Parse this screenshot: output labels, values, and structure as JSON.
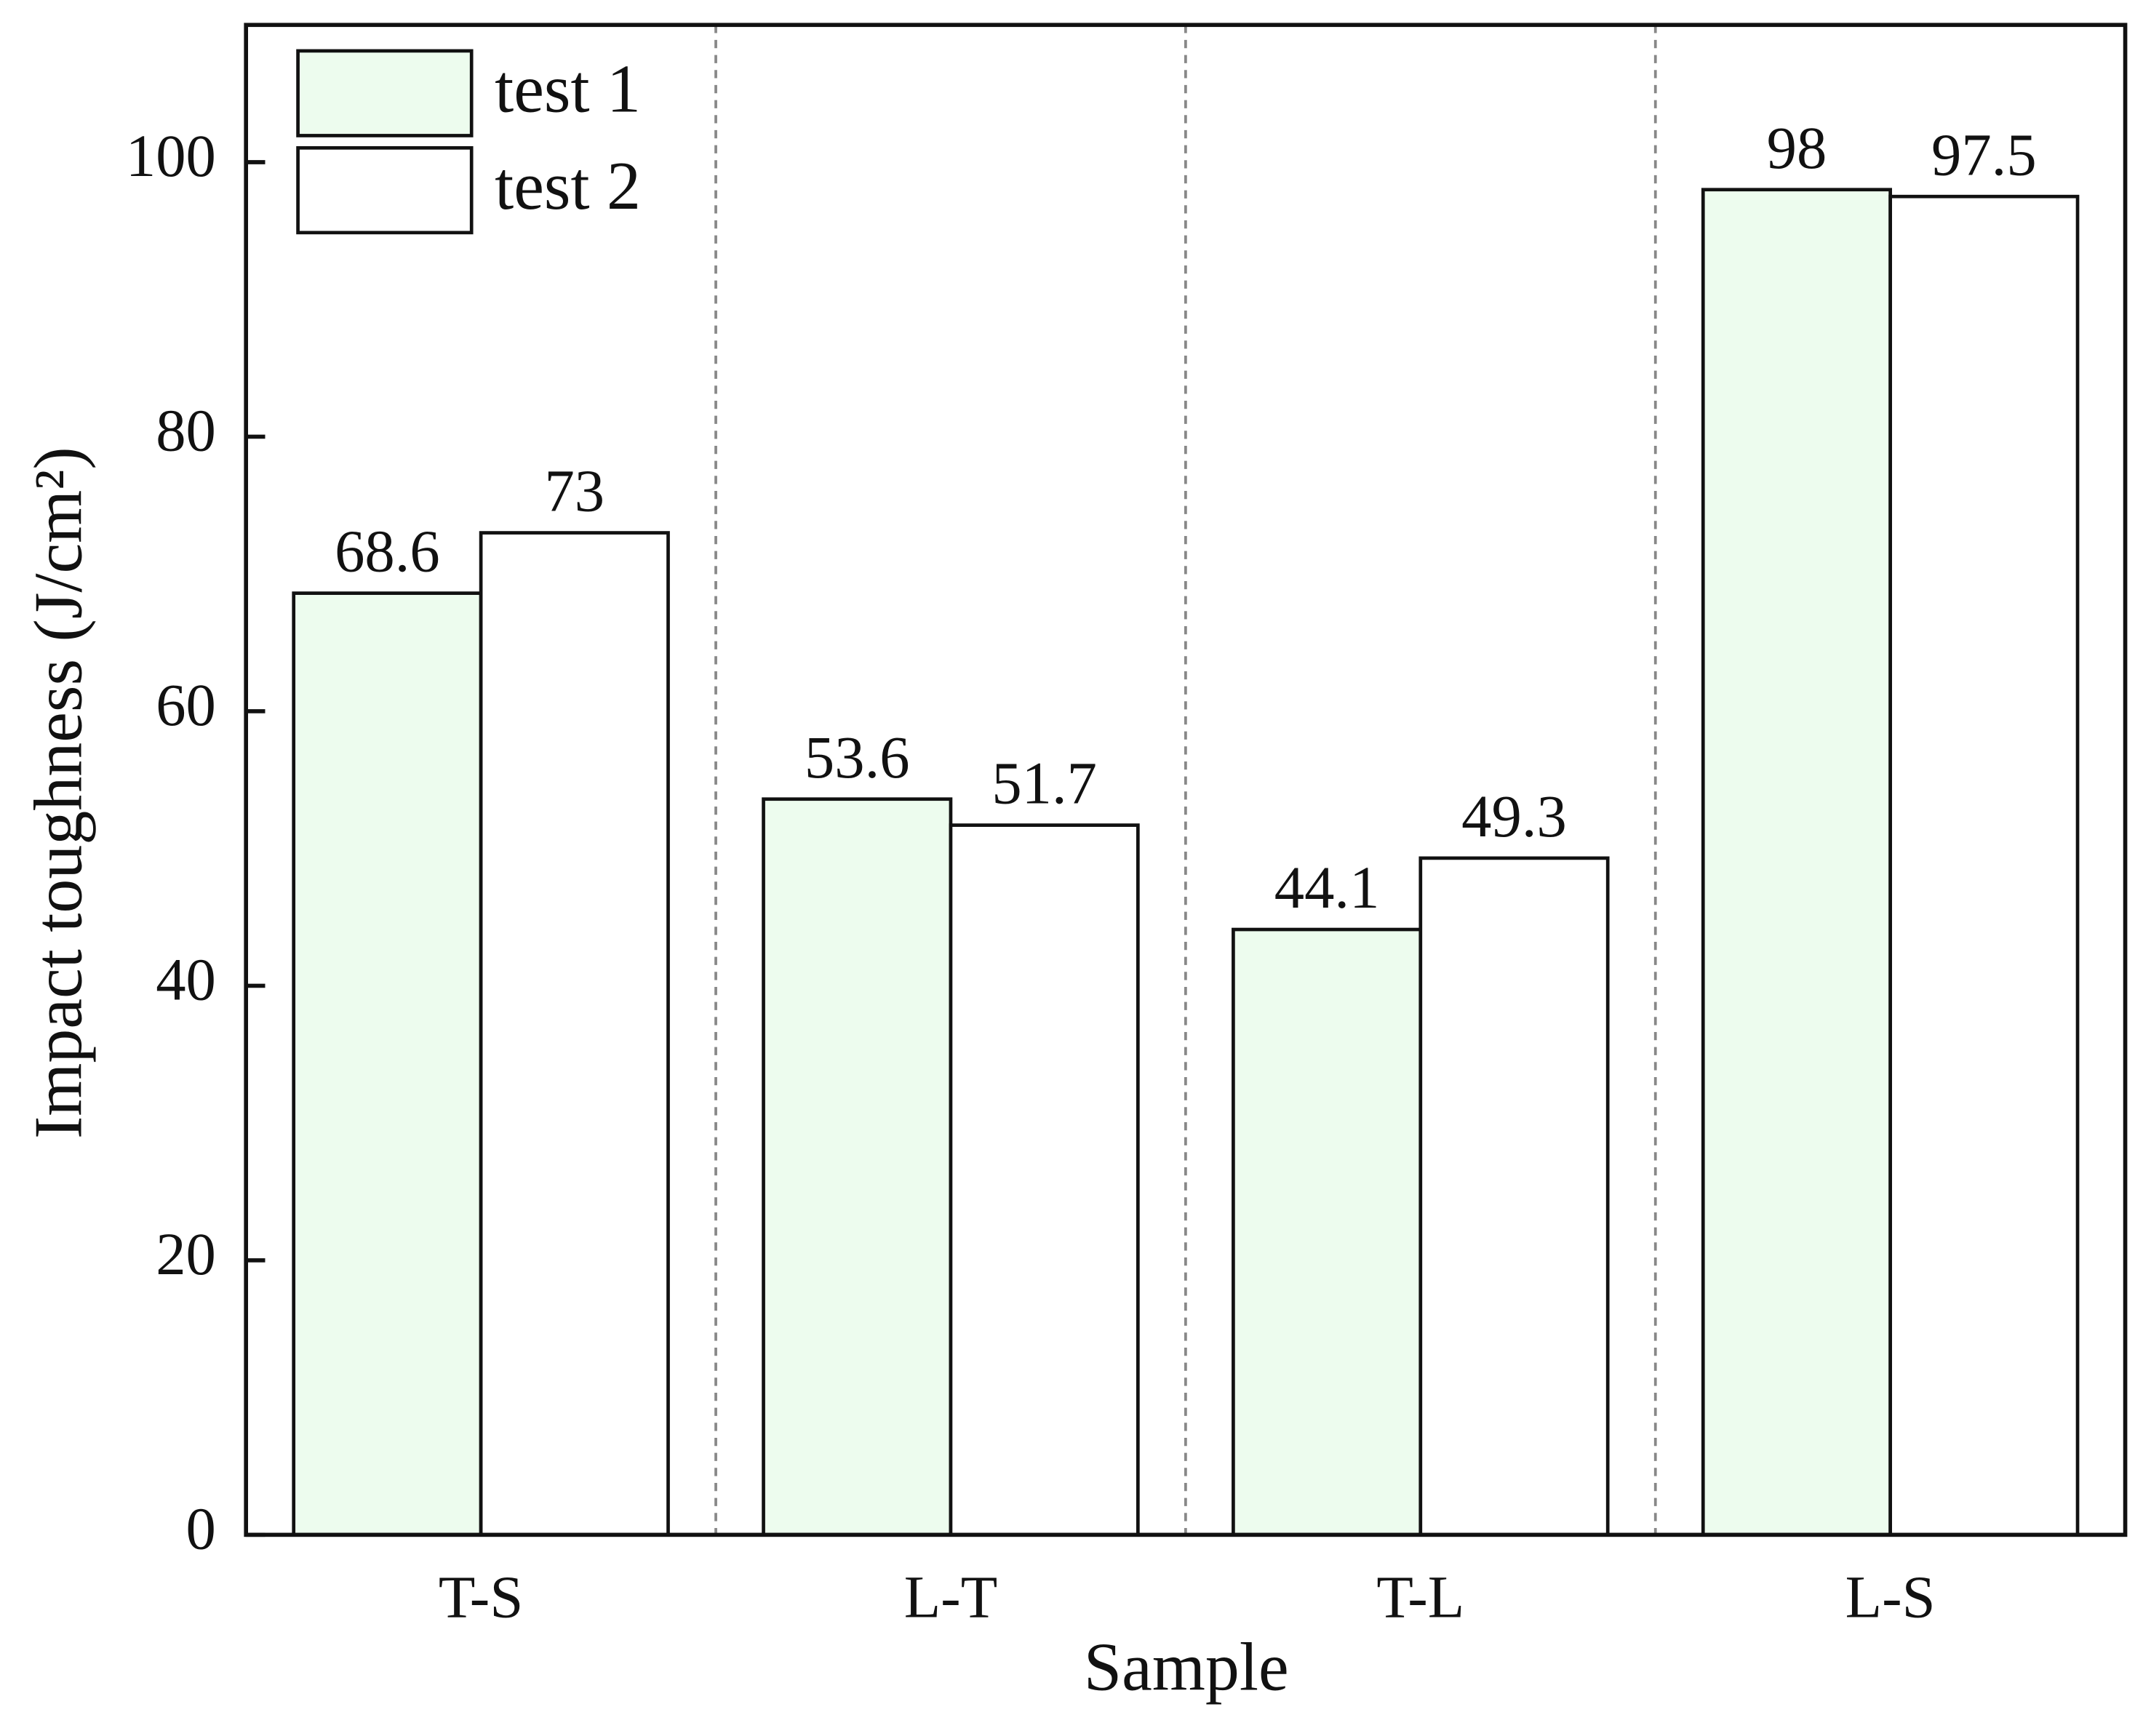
{
  "chart_data": {
    "type": "bar",
    "x_label": "Sample",
    "y_label": "Impact toughness (J/cm²)",
    "categories": [
      "T-S",
      "L-T",
      "T-L",
      "L-S"
    ],
    "series": [
      {
        "name": "test 1",
        "color": "#edfcee",
        "values": [
          68.6,
          53.6,
          44.1,
          98
        ]
      },
      {
        "name": "test 2",
        "color": "#ffffff",
        "values": [
          73,
          51.7,
          49.3,
          97.5
        ]
      }
    ],
    "ylim": [
      0,
      110
    ],
    "yticks": [
      0,
      20,
      40,
      60,
      80,
      100
    ],
    "legend": "upper left",
    "category_dividers": true
  }
}
